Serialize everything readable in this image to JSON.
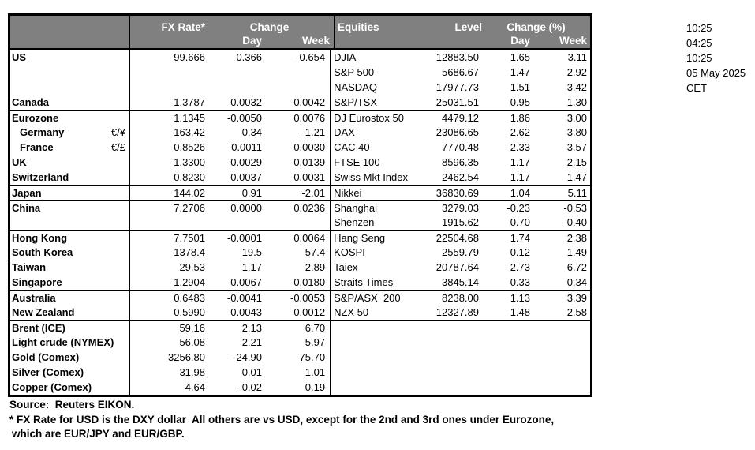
{
  "colors": {
    "header_bg": "#808080",
    "header_text": "#ffffff",
    "border": "#000000"
  },
  "timestamps": {
    "lines": [
      "10:25",
      "04:25",
      "10:25",
      "05 May 2025",
      "CET"
    ]
  },
  "fx": {
    "header": {
      "rate": "FX Rate*",
      "change": "Change",
      "day": "Day",
      "week": "Week"
    },
    "rows": [
      {
        "name": "US",
        "sub": "",
        "rate": "99.666",
        "day": "0.366",
        "week": "-0.654"
      },
      {
        "name": "",
        "sub": "",
        "rate": "",
        "day": "",
        "week": ""
      },
      {
        "name": "",
        "sub": "",
        "rate": "",
        "day": "",
        "week": ""
      },
      {
        "name": "Canada",
        "sub": "",
        "rate": "1.3787",
        "day": "0.0032",
        "week": "0.0042"
      },
      {
        "name": "Eurozone",
        "sub": "",
        "rate": "1.1345",
        "day": "-0.0050",
        "week": "0.0076",
        "group": true
      },
      {
        "name": "Germany",
        "sub": "€/¥",
        "rate": "163.42",
        "day": "0.34",
        "week": "-1.21",
        "indent": true
      },
      {
        "name": "France",
        "sub": "€/£",
        "rate": "0.8526",
        "day": "-0.0011",
        "week": "-0.0030",
        "indent": true
      },
      {
        "name": "UK",
        "sub": "",
        "rate": "1.3300",
        "day": "-0.0029",
        "week": "0.0139"
      },
      {
        "name": "Switzerland",
        "sub": "",
        "rate": "0.8230",
        "day": "0.0037",
        "week": "-0.0031"
      },
      {
        "name": "Japan",
        "sub": "",
        "rate": "144.02",
        "day": "0.91",
        "week": "-2.01",
        "group": true
      },
      {
        "name": "China",
        "sub": "",
        "rate": "7.2706",
        "day": "0.0000",
        "week": "0.0236",
        "group": true
      },
      {
        "name": "",
        "sub": "",
        "rate": "",
        "day": "",
        "week": ""
      },
      {
        "name": "Hong Kong",
        "sub": "",
        "rate": "7.7501",
        "day": "-0.0001",
        "week": "0.0064",
        "group": true
      },
      {
        "name": "South Korea",
        "sub": "",
        "rate": "1378.4",
        "day": "19.5",
        "week": "57.4"
      },
      {
        "name": "Taiwan",
        "sub": "",
        "rate": "29.53",
        "day": "1.17",
        "week": "2.89"
      },
      {
        "name": "Singapore",
        "sub": "",
        "rate": "1.2904",
        "day": "0.0067",
        "week": "0.0180"
      },
      {
        "name": "Australia",
        "sub": "",
        "rate": "0.6483",
        "day": "-0.0041",
        "week": "-0.0053",
        "group": true
      },
      {
        "name": "New Zealand",
        "sub": "",
        "rate": "0.5990",
        "day": "-0.0043",
        "week": "-0.0012"
      },
      {
        "name": "Brent (ICE)",
        "sub": "",
        "rate": "59.16",
        "day": "2.13",
        "week": "6.70",
        "group": true
      },
      {
        "name": "Light crude (NYMEX)",
        "sub": "",
        "rate": "56.08",
        "day": "2.21",
        "week": "5.97"
      },
      {
        "name": "Gold (Comex)",
        "sub": "",
        "rate": "3256.80",
        "day": "-24.90",
        "week": "75.70"
      },
      {
        "name": "Silver (Comex)",
        "sub": "",
        "rate": "31.98",
        "day": "0.01",
        "week": "1.01"
      },
      {
        "name": "Copper (Comex)",
        "sub": "",
        "rate": "4.64",
        "day": "-0.02",
        "week": "0.19"
      }
    ]
  },
  "equities": {
    "header": {
      "title": "Equities",
      "level": "Level",
      "change": "Change (%)",
      "day": "Day",
      "week": "Week"
    },
    "rows": [
      {
        "name": "DJIA",
        "level": "12883.50",
        "day": "1.65",
        "week": "3.11"
      },
      {
        "name": "S&P 500",
        "level": "5686.67",
        "day": "1.47",
        "week": "2.92"
      },
      {
        "name": "NASDAQ",
        "level": "17977.73",
        "day": "1.51",
        "week": "3.42"
      },
      {
        "name": "S&P/TSX",
        "level": "25031.51",
        "day": "0.95",
        "week": "1.30"
      },
      {
        "name": "DJ Eurostox 50",
        "level": "4479.12",
        "day": "1.86",
        "week": "3.00",
        "group": true
      },
      {
        "name": "DAX",
        "level": "23086.65",
        "day": "2.62",
        "week": "3.80"
      },
      {
        "name": "CAC 40",
        "level": "7770.48",
        "day": "2.33",
        "week": "3.57"
      },
      {
        "name": "FTSE 100",
        "level": "8596.35",
        "day": "1.17",
        "week": "2.15"
      },
      {
        "name": "Swiss Mkt Index",
        "level": "2462.54",
        "day": "1.17",
        "week": "1.47"
      },
      {
        "name": "Nikkei",
        "level": "36830.69",
        "day": "1.04",
        "week": "5.11",
        "group": true
      },
      {
        "name": "Shanghai",
        "level": "3279.03",
        "day": "-0.23",
        "week": "-0.53",
        "group": true
      },
      {
        "name": "Shenzen",
        "level": "1915.62",
        "day": "0.70",
        "week": "-0.40"
      },
      {
        "name": "Hang Seng",
        "level": "22504.68",
        "day": "1.74",
        "week": "2.38",
        "group": true
      },
      {
        "name": "KOSPI",
        "level": "2559.79",
        "day": "0.12",
        "week": "1.49"
      },
      {
        "name": "Taiex",
        "level": "20787.64",
        "day": "2.73",
        "week": "6.72"
      },
      {
        "name": "Straits Times",
        "level": "3845.14",
        "day": "0.33",
        "week": "0.34"
      },
      {
        "name": "S&P/ASX  200",
        "level": "8238.00",
        "day": "1.13",
        "week": "3.39",
        "group": true
      },
      {
        "name": "NZX 50",
        "level": "12327.89",
        "day": "1.48",
        "week": "2.58"
      }
    ]
  },
  "footer": {
    "source": "Source:  Reuters EIKON.",
    "note1": "* FX Rate for USD is the DXY dollar  All others are vs USD, except for the 2nd and 3rd ones under Eurozone,",
    "note2": "which are EUR/JPY and EUR/GBP."
  }
}
